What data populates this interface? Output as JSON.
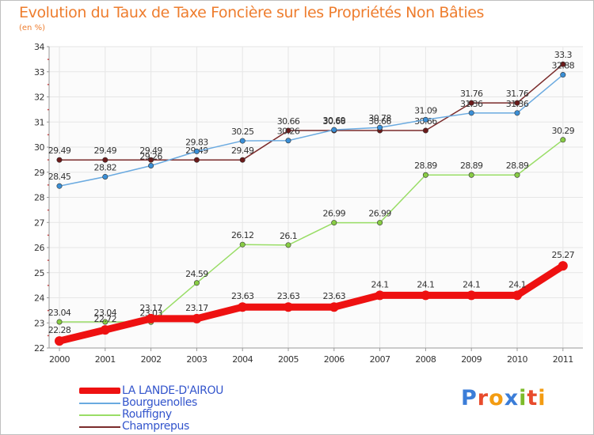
{
  "chart_data": {
    "type": "line",
    "title": "Evolution du Taux de Taxe Foncière sur les Propriétés Non Bâties",
    "ylabel": "(en %)",
    "xlabel": "",
    "ylim": [
      22,
      34
    ],
    "yticks": [
      22,
      23,
      24,
      25,
      26,
      27,
      28,
      29,
      30,
      31,
      32,
      33,
      34
    ],
    "categories": [
      "2000",
      "2001",
      "2002",
      "2003",
      "2004",
      "2005",
      "2006",
      "2007",
      "2008",
      "2009",
      "2010",
      "2011"
    ],
    "series": [
      {
        "name": "Champrepus",
        "color": "#7a2b2b",
        "point_color": "#6b1a1a",
        "values": [
          29.49,
          29.49,
          29.49,
          29.49,
          29.49,
          30.66,
          30.66,
          30.66,
          30.66,
          31.76,
          31.76,
          33.3
        ],
        "labels": [
          "29.49",
          "29.49",
          "29.49",
          "29.49",
          "29.49",
          "30.66",
          "30.66",
          "30.66",
          "30.66",
          "31.76",
          "31.76",
          "33.3"
        ]
      },
      {
        "name": "Rouffigny",
        "color": "#99dd66",
        "point_color": "#88cc44",
        "values": [
          23.04,
          23.04,
          23.03,
          24.59,
          26.12,
          26.1,
          26.99,
          26.99,
          28.89,
          28.89,
          28.89,
          30.29
        ],
        "labels": [
          "23.04",
          "23.04",
          "23.03",
          "24.59",
          "26.12",
          "26.1",
          "26.99",
          "26.99",
          "28.89",
          "28.89",
          "28.89",
          "30.29"
        ]
      },
      {
        "name": "Bourguenolles",
        "color": "#6aaae0",
        "point_color": "#3b8fd6",
        "values": [
          28.45,
          28.82,
          29.26,
          29.83,
          30.25,
          30.26,
          30.69,
          30.78,
          31.09,
          31.36,
          31.36,
          32.88
        ],
        "labels": [
          "28.45",
          "28.82",
          "29.26",
          "29.83",
          "30.25",
          "30.26",
          "30.69",
          "30.78",
          "31.09",
          "31.36",
          "31.36",
          "32.88"
        ]
      },
      {
        "name": "LA LANDE-D'AIROU",
        "color": "#ee1111",
        "point_color": "#ee1111",
        "values": [
          22.28,
          22.72,
          23.17,
          23.17,
          23.63,
          23.63,
          23.63,
          24.1,
          24.1,
          24.1,
          24.1,
          25.27
        ],
        "labels": [
          "22.28",
          "22.72",
          "23.17",
          "23.17",
          "23.63",
          "23.63",
          "23.63",
          "24.1",
          "24.1",
          "24.1",
          "24.1",
          "25.27"
        ]
      }
    ],
    "legend": [
      "LA LANDE-D'AIROU",
      "Bourguenolles",
      "Rouffigny",
      "Champrepus"
    ],
    "legend_position": "bottom-left"
  },
  "header": {
    "title": "Evolution du Taux de Taxe Foncière sur les Propriétés Non Bâties",
    "unit": "(en %)"
  },
  "legend": {
    "items": [
      {
        "label": "LA LANDE-D'AIROU",
        "color": "#ee1111"
      },
      {
        "label": "Bourguenolles",
        "color": "#6aaae0"
      },
      {
        "label": "Rouffigny",
        "color": "#99dd66"
      },
      {
        "label": "Champrepus",
        "color": "#7a2b2b"
      }
    ]
  },
  "logo": {
    "letters": [
      "P",
      "r",
      "o",
      "x",
      "i",
      "t",
      "i"
    ]
  }
}
